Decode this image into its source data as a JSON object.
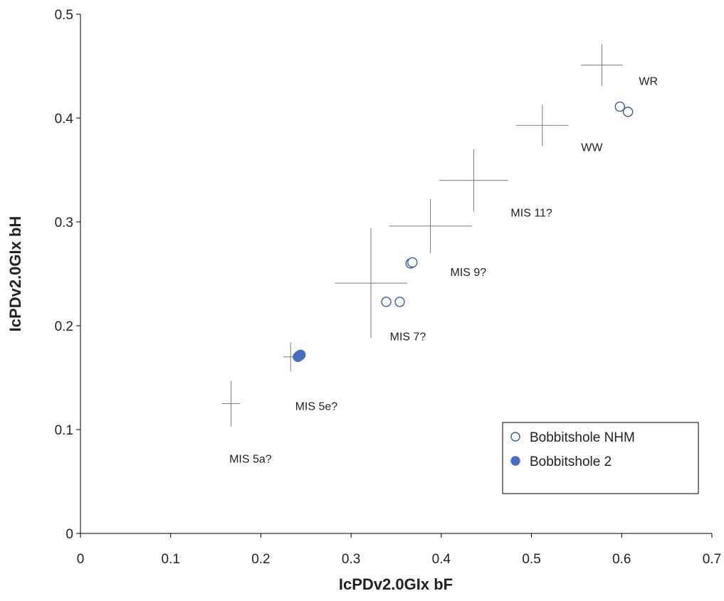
{
  "chart_data": {
    "type": "scatter",
    "xlabel": "IcPDv2.0GIx bF",
    "ylabel": "IcPDv2.0GIx bH",
    "xlim": [
      0,
      0.7
    ],
    "ylim": [
      0,
      0.5
    ],
    "x_ticks": [
      "0",
      "0.1",
      "0.2",
      "0.3",
      "0.4",
      "0.5",
      "0.6",
      "0.7"
    ],
    "y_ticks": [
      "0",
      "0.1",
      "0.2",
      "0.3",
      "0.4",
      "0.5"
    ],
    "grid": false,
    "legend_position": "bottom-right",
    "series": [
      {
        "name": "Bobbitshole NHM",
        "marker": "open-circle",
        "color": "#3a5aa8",
        "points": [
          {
            "x": 0.339,
            "y": 0.223
          },
          {
            "x": 0.354,
            "y": 0.223
          },
          {
            "x": 0.366,
            "y": 0.26
          },
          {
            "x": 0.368,
            "y": 0.261
          },
          {
            "x": 0.598,
            "y": 0.411
          },
          {
            "x": 0.607,
            "y": 0.406
          }
        ]
      },
      {
        "name": "Bobbitshole 2",
        "marker": "filled-circle",
        "color": "#4a6cc0",
        "points": [
          {
            "x": 0.241,
            "y": 0.17
          },
          {
            "x": 0.243,
            "y": 0.171
          },
          {
            "x": 0.244,
            "y": 0.172
          },
          {
            "x": 0.242,
            "y": 0.171
          }
        ]
      }
    ],
    "reference_crosses": [
      {
        "label": "MIS 5a?",
        "x": 0.167,
        "y": 0.125,
        "x_err": 0.01,
        "y_err": 0.022
      },
      {
        "label": "MIS 5e?",
        "x": 0.233,
        "y": 0.17,
        "x_err": 0.008,
        "y_err": 0.014
      },
      {
        "label": "MIS 7?",
        "x": 0.322,
        "y": 0.241,
        "x_err": 0.04,
        "y_err": 0.053
      },
      {
        "label": "MIS 9?",
        "x": 0.388,
        "y": 0.296,
        "x_err": 0.046,
        "y_err": 0.026
      },
      {
        "label": "MIS 11?",
        "x": 0.436,
        "y": 0.34,
        "x_err": 0.038,
        "y_err": 0.03
      },
      {
        "label": "WW",
        "x": 0.512,
        "y": 0.393,
        "x_err": 0.029,
        "y_err": 0.02
      },
      {
        "label": "WR",
        "x": 0.578,
        "y": 0.451,
        "x_err": 0.023,
        "y_err": 0.02
      }
    ],
    "annotations": [
      {
        "text": "MIS 5a?",
        "x": 0.165,
        "y": 0.068
      },
      {
        "text": "MIS 5e?",
        "x": 0.238,
        "y": 0.119
      },
      {
        "text": "MIS 7?",
        "x": 0.343,
        "y": 0.186
      },
      {
        "text": "MIS 9?",
        "x": 0.41,
        "y": 0.248
      },
      {
        "text": "MIS 11?",
        "x": 0.477,
        "y": 0.305
      },
      {
        "text": "WW",
        "x": 0.555,
        "y": 0.368
      },
      {
        "text": "WR",
        "x": 0.619,
        "y": 0.432
      }
    ]
  }
}
